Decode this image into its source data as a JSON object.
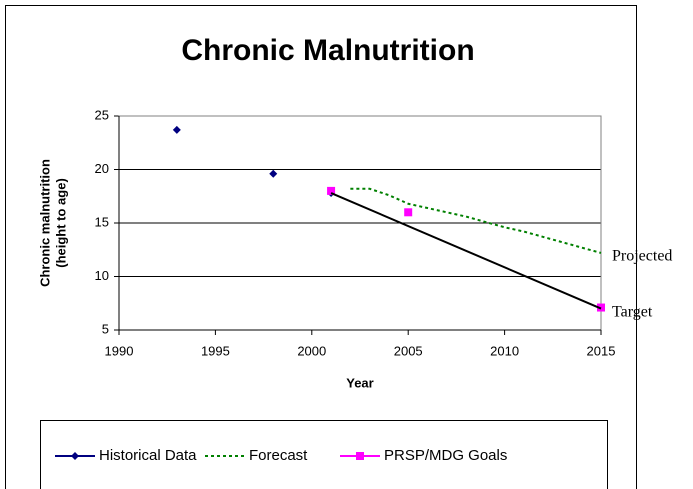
{
  "chart_data": {
    "type": "line",
    "title": "Chronic Malnutrition",
    "x_label": "Year",
    "y_label": [
      "Chronic malnutrition",
      "(height to age)"
    ],
    "xlim": [
      1990,
      2015
    ],
    "xticks": [
      1990,
      1995,
      2000,
      2005,
      2010,
      2015
    ],
    "ylim": [
      5,
      25
    ],
    "yticks": [
      5,
      10,
      15,
      20,
      25
    ],
    "grid": true,
    "legend": "bottom",
    "series": [
      {
        "name": "Historical  Data",
        "color": "#000080",
        "line": "none",
        "marker": "diamond",
        "x": [
          1993,
          1998,
          2001
        ],
        "values": [
          23.7,
          19.6,
          17.8
        ]
      },
      {
        "name": "Forecast",
        "color": "#008000",
        "line": "dotted",
        "marker": "none",
        "x": [
          2002,
          2003,
          2004,
          2005,
          2006,
          2007,
          2008,
          2009,
          2010,
          2011,
          2012,
          2013,
          2014,
          2015
        ],
        "values": [
          18.2,
          18.2,
          17.6,
          16.8,
          16.4,
          16.0,
          15.6,
          15.1,
          14.6,
          14.2,
          13.7,
          13.2,
          12.7,
          12.2
        ]
      },
      {
        "name": "PRSP/MDG Goals",
        "color": "#ff00ff",
        "line": "none",
        "marker": "square",
        "x": [
          2001,
          2005,
          2015
        ],
        "values": [
          18.0,
          16.0,
          7.1
        ]
      },
      {
        "color": "#000000",
        "line": "solid",
        "marker": "none",
        "x": [
          2001,
          2015
        ],
        "values": [
          17.8,
          7.0
        ]
      }
    ],
    "annotations": [
      {
        "text": "Projected",
        "x": 2015,
        "y": 12.2
      },
      {
        "text": "Target",
        "x": 2015,
        "y": 7.0
      }
    ]
  }
}
